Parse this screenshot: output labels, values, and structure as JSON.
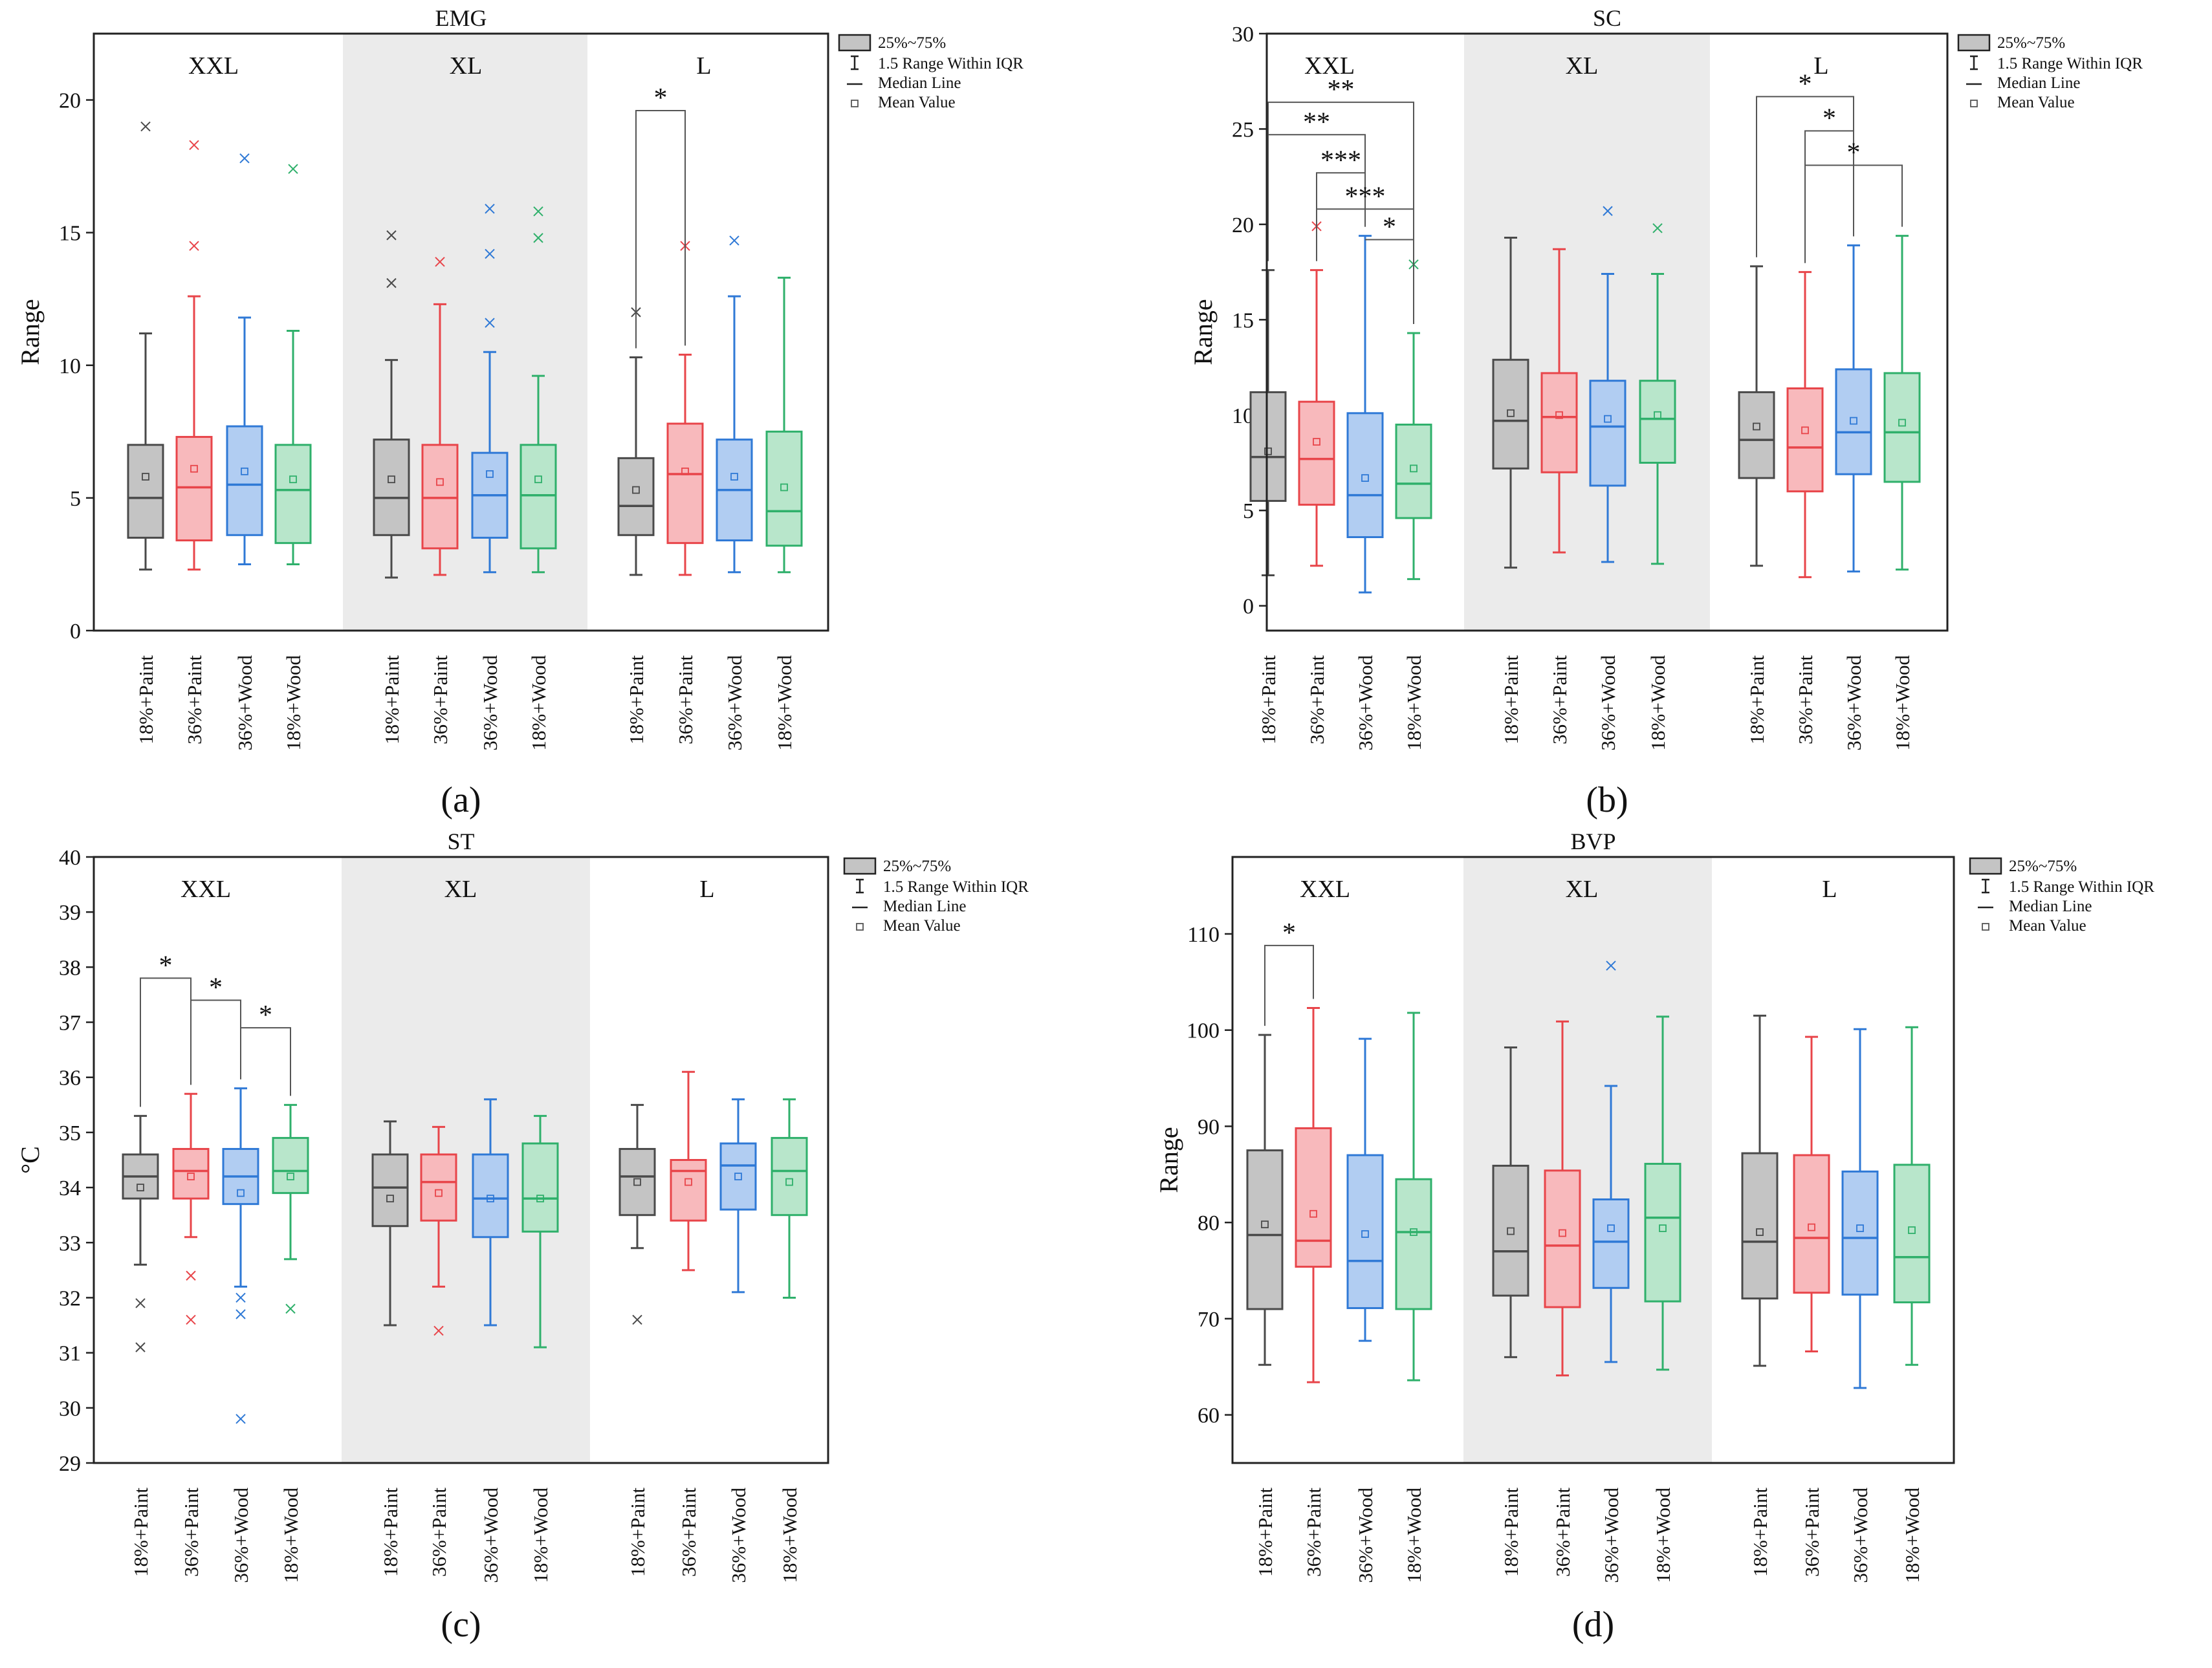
{
  "figure": {
    "groups": [
      "XXL",
      "XL",
      "L"
    ],
    "categories": [
      "18%+Paint",
      "36%+Paint",
      "36%+Wood",
      "18%+Wood"
    ],
    "colors": {
      "stroke": [
        "#4a4a4a",
        "#e8454a",
        "#2f79d6",
        "#2fb06b"
      ],
      "fill": [
        "#c4c4c4",
        "#f8b9bc",
        "#b1cdf2",
        "#b8e6cb"
      ],
      "shade": "#ebebeb"
    },
    "legend": {
      "box": "25%~75%",
      "whisker": "1.5 Range Within IQR",
      "median": "Median Line",
      "mean": "Mean Value"
    }
  },
  "chart_data": [
    {
      "type": "box",
      "title": "EMG",
      "ylabel": "Range",
      "panel_label": "(a)",
      "ylim": [
        0,
        22.5
      ],
      "yticks": [
        0,
        5,
        10,
        15,
        20
      ],
      "boxes": [
        {
          "min": 2.3,
          "q1": 3.5,
          "median": 5.0,
          "q3": 7.0,
          "max": 11.2,
          "mean": 5.8,
          "outliers": [
            19.0
          ]
        },
        {
          "min": 2.3,
          "q1": 3.4,
          "median": 5.4,
          "q3": 7.3,
          "max": 12.6,
          "mean": 6.1,
          "outliers": [
            14.5,
            18.3
          ]
        },
        {
          "min": 2.5,
          "q1": 3.6,
          "median": 5.5,
          "q3": 7.7,
          "max": 11.8,
          "mean": 6.0,
          "outliers": [
            17.8
          ]
        },
        {
          "min": 2.5,
          "q1": 3.3,
          "median": 5.3,
          "q3": 7.0,
          "max": 11.3,
          "mean": 5.7,
          "outliers": [
            17.4
          ]
        },
        {
          "min": 2.0,
          "q1": 3.6,
          "median": 5.0,
          "q3": 7.2,
          "max": 10.2,
          "mean": 5.7,
          "outliers": [
            13.1,
            14.9
          ]
        },
        {
          "min": 2.1,
          "q1": 3.1,
          "median": 5.0,
          "q3": 7.0,
          "max": 12.3,
          "mean": 5.6,
          "outliers": [
            13.9
          ]
        },
        {
          "min": 2.2,
          "q1": 3.5,
          "median": 5.1,
          "q3": 6.7,
          "max": 10.5,
          "mean": 5.9,
          "outliers": [
            11.6,
            14.2,
            15.9
          ]
        },
        {
          "min": 2.2,
          "q1": 3.1,
          "median": 5.1,
          "q3": 7.0,
          "max": 9.6,
          "mean": 5.7,
          "outliers": [
            14.8,
            15.8
          ]
        },
        {
          "min": 2.1,
          "q1": 3.6,
          "median": 4.7,
          "q3": 6.5,
          "max": 10.3,
          "mean": 5.3,
          "outliers": [
            12.0
          ]
        },
        {
          "min": 2.1,
          "q1": 3.3,
          "median": 5.9,
          "q3": 7.8,
          "max": 10.4,
          "mean": 6.0,
          "outliers": [
            14.5
          ]
        },
        {
          "min": 2.2,
          "q1": 3.4,
          "median": 5.3,
          "q3": 7.2,
          "max": 12.6,
          "mean": 5.8,
          "outliers": [
            14.7
          ]
        },
        {
          "min": 2.2,
          "q1": 3.2,
          "median": 4.5,
          "q3": 7.5,
          "max": 13.3,
          "mean": 5.4,
          "outliers": []
        }
      ],
      "brackets": [
        {
          "from": 8,
          "to": 9,
          "y": 19.6,
          "label": "*"
        }
      ]
    },
    {
      "type": "box",
      "title": "SC",
      "ylabel": "Range",
      "panel_label": "(b)",
      "ylim": [
        -1.3,
        30
      ],
      "yticks": [
        0,
        5,
        10,
        15,
        20,
        25,
        30
      ],
      "boxes": [
        {
          "min": 1.6,
          "q1": 5.5,
          "median": 7.8,
          "q3": 11.2,
          "max": 17.6,
          "mean": 8.1,
          "outliers": []
        },
        {
          "min": 2.1,
          "q1": 5.3,
          "median": 7.7,
          "q3": 10.7,
          "max": 17.6,
          "mean": 8.6,
          "outliers": [
            19.9
          ]
        },
        {
          "min": 0.7,
          "q1": 3.6,
          "median": 5.8,
          "q3": 10.1,
          "max": 19.4,
          "mean": 6.7,
          "outliers": []
        },
        {
          "min": 1.4,
          "q1": 4.6,
          "median": 6.4,
          "q3": 9.5,
          "max": 14.3,
          "mean": 7.2,
          "outliers": [
            17.9
          ]
        },
        {
          "min": 2.0,
          "q1": 7.2,
          "median": 9.7,
          "q3": 12.9,
          "max": 19.3,
          "mean": 10.1,
          "outliers": []
        },
        {
          "min": 2.8,
          "q1": 7.0,
          "median": 9.9,
          "q3": 12.2,
          "max": 18.7,
          "mean": 10.0,
          "outliers": []
        },
        {
          "min": 2.3,
          "q1": 6.3,
          "median": 9.4,
          "q3": 11.8,
          "max": 17.4,
          "mean": 9.8,
          "outliers": [
            20.7
          ]
        },
        {
          "min": 2.2,
          "q1": 7.5,
          "median": 9.8,
          "q3": 11.8,
          "max": 17.4,
          "mean": 10.0,
          "outliers": [
            19.8
          ]
        },
        {
          "min": 2.1,
          "q1": 6.7,
          "median": 8.7,
          "q3": 11.2,
          "max": 17.8,
          "mean": 9.4,
          "outliers": []
        },
        {
          "min": 1.5,
          "q1": 6.0,
          "median": 8.3,
          "q3": 11.4,
          "max": 17.5,
          "mean": 9.2,
          "outliers": []
        },
        {
          "min": 1.8,
          "q1": 6.9,
          "median": 9.1,
          "q3": 12.4,
          "max": 18.9,
          "mean": 9.7,
          "outliers": []
        },
        {
          "min": 1.9,
          "q1": 6.5,
          "median": 9.1,
          "q3": 12.2,
          "max": 19.4,
          "mean": 9.6,
          "outliers": []
        }
      ],
      "brackets": [
        {
          "from": 0,
          "to": 3,
          "y": 26.4,
          "label": "**"
        },
        {
          "from": 0,
          "to": 2,
          "y": 24.7,
          "label": "**"
        },
        {
          "from": 1,
          "to": 2,
          "y": 22.7,
          "label": "***"
        },
        {
          "from": 1,
          "to": 3,
          "y": 20.8,
          "label": "***"
        },
        {
          "from": 2,
          "to": 3,
          "y": 19.2,
          "label": "*"
        },
        {
          "from": 8,
          "to": 10,
          "y": 26.7,
          "label": "*"
        },
        {
          "from": 9,
          "to": 10,
          "y": 24.9,
          "label": "*"
        },
        {
          "from": 9,
          "to": 11,
          "y": 23.1,
          "label": "*"
        }
      ]
    },
    {
      "type": "box",
      "title": "ST",
      "ylabel": "°C",
      "panel_label": "(c)",
      "ylim": [
        29,
        40
      ],
      "yticks": [
        29,
        30,
        31,
        32,
        33,
        34,
        35,
        36,
        37,
        38,
        39,
        40
      ],
      "boxes": [
        {
          "min": 32.6,
          "q1": 33.8,
          "median": 34.2,
          "q3": 34.6,
          "max": 35.3,
          "mean": 34.0,
          "outliers": [
            31.1,
            31.9
          ]
        },
        {
          "min": 33.1,
          "q1": 33.8,
          "median": 34.3,
          "q3": 34.7,
          "max": 35.7,
          "mean": 34.2,
          "outliers": [
            31.6,
            32.4
          ]
        },
        {
          "min": 32.2,
          "q1": 33.7,
          "median": 34.2,
          "q3": 34.7,
          "max": 35.8,
          "mean": 33.9,
          "outliers": [
            29.8,
            31.7,
            32.0
          ]
        },
        {
          "min": 32.7,
          "q1": 33.9,
          "median": 34.3,
          "q3": 34.9,
          "max": 35.5,
          "mean": 34.2,
          "outliers": [
            31.8
          ]
        },
        {
          "min": 31.5,
          "q1": 33.3,
          "median": 34.0,
          "q3": 34.6,
          "max": 35.2,
          "mean": 33.8,
          "outliers": []
        },
        {
          "min": 32.2,
          "q1": 33.4,
          "median": 34.1,
          "q3": 34.6,
          "max": 35.1,
          "mean": 33.9,
          "outliers": [
            31.4
          ]
        },
        {
          "min": 31.5,
          "q1": 33.1,
          "median": 33.8,
          "q3": 34.6,
          "max": 35.6,
          "mean": 33.8,
          "outliers": []
        },
        {
          "min": 31.1,
          "q1": 33.2,
          "median": 33.8,
          "q3": 34.8,
          "max": 35.3,
          "mean": 33.8,
          "outliers": []
        },
        {
          "min": 32.9,
          "q1": 33.5,
          "median": 34.2,
          "q3": 34.7,
          "max": 35.5,
          "mean": 34.1,
          "outliers": [
            31.6
          ]
        },
        {
          "min": 32.5,
          "q1": 33.4,
          "median": 34.3,
          "q3": 34.5,
          "max": 36.1,
          "mean": 34.1,
          "outliers": []
        },
        {
          "min": 32.1,
          "q1": 33.6,
          "median": 34.4,
          "q3": 34.8,
          "max": 35.6,
          "mean": 34.2,
          "outliers": []
        },
        {
          "min": 32.0,
          "q1": 33.5,
          "median": 34.3,
          "q3": 34.9,
          "max": 35.6,
          "mean": 34.1,
          "outliers": []
        }
      ],
      "brackets": [
        {
          "from": 0,
          "to": 1,
          "y": 37.8,
          "label": "*"
        },
        {
          "from": 1,
          "to": 2,
          "y": 37.4,
          "label": "*"
        },
        {
          "from": 2,
          "to": 3,
          "y": 36.9,
          "label": "*"
        }
      ]
    },
    {
      "type": "box",
      "title": "BVP",
      "ylabel": "Range",
      "panel_label": "(d)",
      "ylim": [
        55,
        118
      ],
      "yticks": [
        60,
        70,
        80,
        90,
        100,
        110
      ],
      "boxes": [
        {
          "min": 65.2,
          "q1": 71.0,
          "median": 78.7,
          "q3": 87.5,
          "max": 99.5,
          "mean": 79.8,
          "outliers": []
        },
        {
          "min": 63.4,
          "q1": 75.4,
          "median": 78.1,
          "q3": 89.8,
          "max": 102.3,
          "mean": 80.9,
          "outliers": []
        },
        {
          "min": 67.7,
          "q1": 71.1,
          "median": 76.0,
          "q3": 87.0,
          "max": 99.1,
          "mean": 78.8,
          "outliers": []
        },
        {
          "min": 63.6,
          "q1": 71.0,
          "median": 79.0,
          "q3": 84.5,
          "max": 101.8,
          "mean": 79.0,
          "outliers": []
        },
        {
          "min": 66.0,
          "q1": 72.4,
          "median": 77.0,
          "q3": 85.9,
          "max": 98.2,
          "mean": 79.1,
          "outliers": []
        },
        {
          "min": 64.1,
          "q1": 71.2,
          "median": 77.6,
          "q3": 85.4,
          "max": 100.9,
          "mean": 78.9,
          "outliers": []
        },
        {
          "min": 65.5,
          "q1": 73.2,
          "median": 78.0,
          "q3": 82.4,
          "max": 94.2,
          "mean": 79.4,
          "outliers": [
            106.7
          ]
        },
        {
          "min": 64.7,
          "q1": 71.8,
          "median": 80.5,
          "q3": 86.1,
          "max": 101.4,
          "mean": 79.4,
          "outliers": []
        },
        {
          "min": 65.1,
          "q1": 72.1,
          "median": 78.0,
          "q3": 87.2,
          "max": 101.5,
          "mean": 79.0,
          "outliers": []
        },
        {
          "min": 66.6,
          "q1": 72.7,
          "median": 78.4,
          "q3": 87.0,
          "max": 99.3,
          "mean": 79.5,
          "outliers": []
        },
        {
          "min": 62.8,
          "q1": 72.5,
          "median": 78.4,
          "q3": 85.3,
          "max": 100.1,
          "mean": 79.4,
          "outliers": []
        },
        {
          "min": 65.2,
          "q1": 71.7,
          "median": 76.4,
          "q3": 86.0,
          "max": 100.3,
          "mean": 79.2,
          "outliers": []
        }
      ],
      "brackets": [
        {
          "from": 0,
          "to": 1,
          "y": 108.8,
          "label": "*"
        }
      ]
    }
  ]
}
